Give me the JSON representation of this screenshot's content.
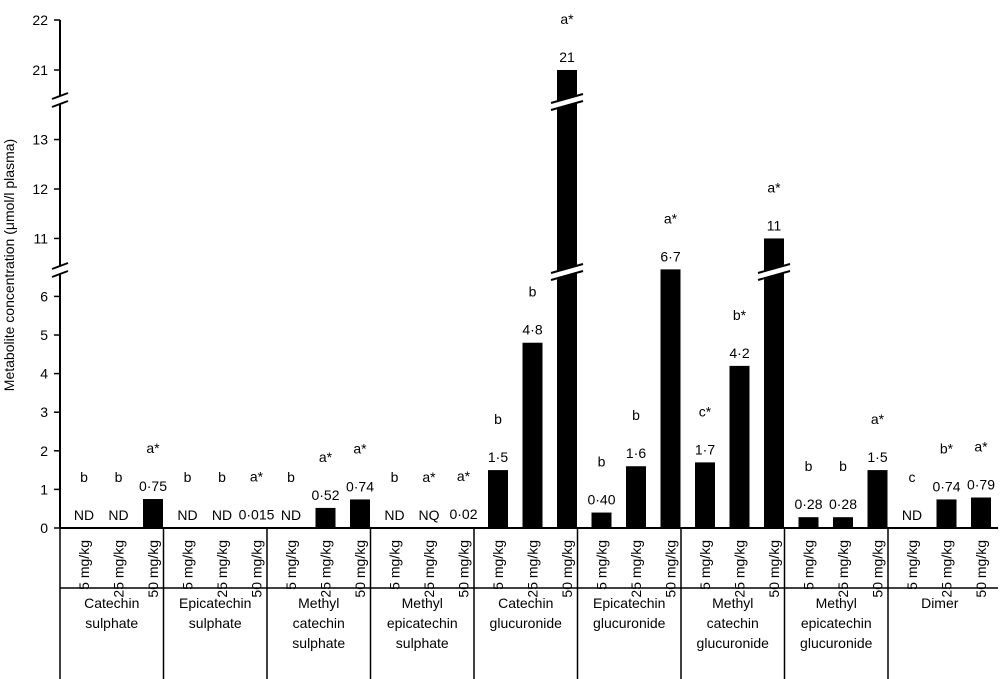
{
  "chart_data": {
    "type": "bar",
    "ylabel": "Metabolite concentration (μmol/l plasma)",
    "y_axis_break_segments": [
      {
        "range": [
          0,
          6.5
        ],
        "ticks": [
          0,
          1,
          2,
          3,
          4,
          5,
          6
        ]
      },
      {
        "range": [
          10.2,
          13.8
        ],
        "ticks": [
          11,
          12,
          13
        ]
      },
      {
        "range": [
          20.4,
          22
        ],
        "ticks": [
          21,
          22
        ]
      }
    ],
    "doses": [
      "5 mg/kg",
      "25 mg/kg",
      "50 mg/kg"
    ],
    "groups": [
      {
        "name_lines": [
          "Catechin",
          "sulphate"
        ],
        "bars": [
          {
            "value": 0,
            "label": "ND",
            "letter": "b"
          },
          {
            "value": 0,
            "label": "ND",
            "letter": "b"
          },
          {
            "value": 0.75,
            "label": "0·75",
            "letter": "a*"
          }
        ]
      },
      {
        "name_lines": [
          "Epicatechin",
          "sulphate"
        ],
        "bars": [
          {
            "value": 0,
            "label": "ND",
            "letter": "b"
          },
          {
            "value": 0,
            "label": "ND",
            "letter": "b"
          },
          {
            "value": 0.015,
            "label": "0·015",
            "letter": "a*"
          }
        ]
      },
      {
        "name_lines": [
          "Methyl",
          "catechin",
          "sulphate"
        ],
        "bars": [
          {
            "value": 0,
            "label": "ND",
            "letter": "b"
          },
          {
            "value": 0.52,
            "label": "0·52",
            "letter": "a*"
          },
          {
            "value": 0.74,
            "label": "0·74",
            "letter": "a*"
          }
        ]
      },
      {
        "name_lines": [
          "Methyl",
          "epicatechin",
          "sulphate"
        ],
        "bars": [
          {
            "value": 0,
            "label": "ND",
            "letter": "b"
          },
          {
            "value": 0,
            "label": "NQ",
            "letter": "a*"
          },
          {
            "value": 0.02,
            "label": "0·02",
            "letter": "a*"
          }
        ]
      },
      {
        "name_lines": [
          "Catechin",
          "glucuronide"
        ],
        "bars": [
          {
            "value": 1.5,
            "label": "1·5",
            "letter": "b"
          },
          {
            "value": 4.8,
            "label": "4·8",
            "letter": "b"
          },
          {
            "value": 21,
            "label": "21",
            "letter": "a*"
          }
        ]
      },
      {
        "name_lines": [
          "Epicatechin",
          "glucuronide"
        ],
        "bars": [
          {
            "value": 0.4,
            "label": "0·40",
            "letter": "b"
          },
          {
            "value": 1.6,
            "label": "1·6",
            "letter": "b"
          },
          {
            "value": 6.7,
            "label": "6·7",
            "letter": "a*"
          }
        ]
      },
      {
        "name_lines": [
          "Methyl",
          "catechin",
          "glucuronide"
        ],
        "bars": [
          {
            "value": 1.7,
            "label": "1·7",
            "letter": "c*"
          },
          {
            "value": 4.2,
            "label": "4·2",
            "letter": "b*"
          },
          {
            "value": 11,
            "label": "11",
            "letter": "a*"
          }
        ]
      },
      {
        "name_lines": [
          "Methyl",
          "epicatechin",
          "glucuronide"
        ],
        "bars": [
          {
            "value": 0.28,
            "label": "0·28",
            "letter": "b"
          },
          {
            "value": 0.28,
            "label": "0·28",
            "letter": "b"
          },
          {
            "value": 1.5,
            "label": "1·5",
            "letter": "a*"
          }
        ]
      },
      {
        "name_lines": [
          "Dimer"
        ],
        "bars": [
          {
            "value": 0,
            "label": "ND",
            "letter": "c"
          },
          {
            "value": 0.74,
            "label": "0·74",
            "letter": "b*"
          },
          {
            "value": 0.79,
            "label": "0·79",
            "letter": "a*"
          }
        ]
      }
    ]
  }
}
